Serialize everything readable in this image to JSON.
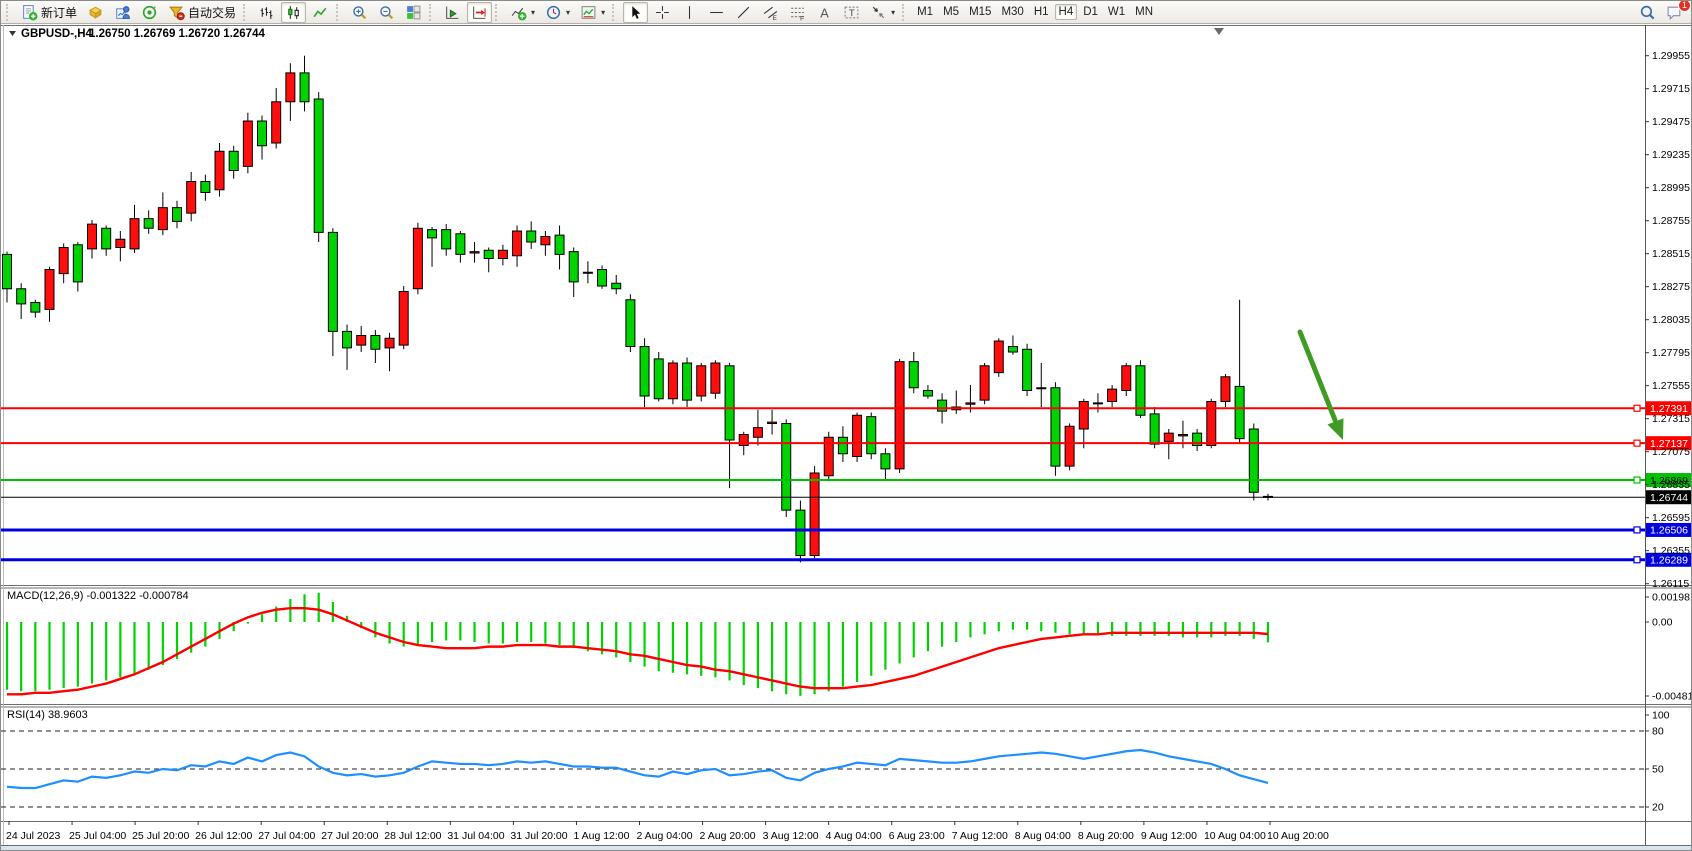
{
  "toolbar": {
    "groups": [
      {
        "name": "trade",
        "items": [
          {
            "name": "new-order-button",
            "icon": "new-order-icon",
            "label": "新订单"
          },
          {
            "name": "market-watch-button",
            "icon": "market-watch-icon"
          },
          {
            "name": "data-window-button",
            "icon": "data-window-icon"
          },
          {
            "name": "strategy-tester-button",
            "icon": "strategy-tester-icon"
          },
          {
            "name": "auto-trading-button",
            "icon": "autotrade-icon",
            "label": "自动交易"
          }
        ]
      },
      {
        "name": "chart-type",
        "items": [
          {
            "name": "bar-chart-button",
            "icon": "bar-chart-icon"
          },
          {
            "name": "candlestick-chart-button",
            "icon": "candlestick-icon",
            "active": true
          },
          {
            "name": "line-chart-button",
            "icon": "line-chart-icon"
          }
        ]
      },
      {
        "name": "zoom",
        "items": [
          {
            "name": "zoom-in-button",
            "icon": "zoom-in-icon"
          },
          {
            "name": "zoom-out-button",
            "icon": "zoom-out-icon"
          },
          {
            "name": "tile-windows-button",
            "icon": "tile-windows-icon"
          }
        ]
      },
      {
        "name": "scroll",
        "items": [
          {
            "name": "auto-scroll-button",
            "icon": "auto-scroll-icon"
          },
          {
            "name": "chart-shift-button",
            "icon": "chart-shift-icon",
            "active": true
          }
        ]
      },
      {
        "name": "chart-menus",
        "items": [
          {
            "name": "indicators-button",
            "icon": "indicators-icon",
            "caret": true
          },
          {
            "name": "periods-button",
            "icon": "periods-icon",
            "caret": true
          },
          {
            "name": "templates-button",
            "icon": "templates-icon",
            "caret": true
          }
        ]
      },
      {
        "name": "objects",
        "items": [
          {
            "name": "cursor-button",
            "icon": "cursor-icon",
            "active": true
          },
          {
            "name": "crosshair-button",
            "icon": "crosshair-icon"
          },
          {
            "name": "vertical-line-button",
            "icon": "vline-icon"
          },
          {
            "name": "horizontal-line-button",
            "icon": "hline-icon"
          },
          {
            "name": "trendline-button",
            "icon": "trendline-icon"
          },
          {
            "name": "equidistant-channel-button",
            "icon": "channel-icon"
          },
          {
            "name": "fibonacci-button",
            "icon": "fibo-icon"
          },
          {
            "name": "text-button",
            "icon": "text-icon"
          },
          {
            "name": "text-label-button",
            "icon": "text-label-icon"
          },
          {
            "name": "arrows-button",
            "icon": "arrows-icon",
            "caret": true
          }
        ]
      },
      {
        "name": "timeframes",
        "items": [
          {
            "name": "timeframe-m1-button",
            "label": "M1",
            "tf": true
          },
          {
            "name": "timeframe-m5-button",
            "label": "M5",
            "tf": true
          },
          {
            "name": "timeframe-m15-button",
            "label": "M15",
            "tf": true
          },
          {
            "name": "timeframe-m30-button",
            "label": "M30",
            "tf": true
          },
          {
            "name": "timeframe-h1-button",
            "label": "H1",
            "tf": true
          },
          {
            "name": "timeframe-h4-button",
            "label": "H4",
            "tf": true,
            "active": true
          },
          {
            "name": "timeframe-d1-button",
            "label": "D1",
            "tf": true
          },
          {
            "name": "timeframe-w1-button",
            "label": "W1",
            "tf": true
          },
          {
            "name": "timeframe-mn-button",
            "label": "MN",
            "tf": true
          }
        ]
      }
    ],
    "right": [
      {
        "name": "search-button",
        "icon": "search-icon"
      },
      {
        "name": "notifications-button",
        "icon": "chat-icon",
        "badge": "1"
      }
    ]
  },
  "chart_data": {
    "type": "candlestick",
    "symbol": "GBPUSD-",
    "timeframe": "H4",
    "title": "GBPUSD-,H4",
    "ohlc_readout": "1.26750 1.26769 1.26720 1.26744",
    "current": {
      "open": "1.26750",
      "high": "1.26769",
      "low": "1.26720",
      "close": "1.26744"
    },
    "up_color": "#ff0e0e",
    "down_color": "#00d300",
    "candles": [
      [
        1.2851,
        1.2853,
        1.2816,
        1.2826
      ],
      [
        1.2826,
        1.283,
        1.2804,
        1.2815
      ],
      [
        1.2816,
        1.2818,
        1.2805,
        1.2809
      ],
      [
        1.2811,
        1.2842,
        1.2802,
        1.284
      ],
      [
        1.2837,
        1.2859,
        1.283,
        1.2856
      ],
      [
        1.2858,
        1.286,
        1.2824,
        1.2831
      ],
      [
        1.2855,
        1.2876,
        1.2848,
        1.2873
      ],
      [
        1.287,
        1.2872,
        1.285,
        1.2855
      ],
      [
        1.2856,
        1.2868,
        1.2846,
        1.2862
      ],
      [
        1.2855,
        1.2887,
        1.2852,
        1.2877
      ],
      [
        1.2877,
        1.2883,
        1.2866,
        1.287
      ],
      [
        1.2869,
        1.2896,
        1.2865,
        1.2885
      ],
      [
        1.2885,
        1.289,
        1.287,
        1.2875
      ],
      [
        1.2881,
        1.2911,
        1.2875,
        1.2904
      ],
      [
        1.2904,
        1.2909,
        1.289,
        1.2896
      ],
      [
        1.2898,
        1.2932,
        1.2893,
        1.2926
      ],
      [
        1.2926,
        1.293,
        1.2906,
        1.2912
      ],
      [
        1.2915,
        1.2954,
        1.291,
        1.2948
      ],
      [
        1.2948,
        1.2952,
        1.292,
        1.293
      ],
      [
        1.2932,
        1.2972,
        1.2928,
        1.2962
      ],
      [
        1.2962,
        1.299,
        1.2948,
        1.2983
      ],
      [
        1.2983,
        1.29955,
        1.2955,
        1.2962
      ],
      [
        1.2964,
        1.2969,
        1.286,
        1.2867
      ],
      [
        1.2867,
        1.287,
        1.2777,
        1.2795
      ],
      [
        1.2795,
        1.28,
        1.2767,
        1.2783
      ],
      [
        1.2785,
        1.2799,
        1.278,
        1.2792
      ],
      [
        1.2792,
        1.2796,
        1.2772,
        1.2782
      ],
      [
        1.2783,
        1.2794,
        1.2766,
        1.279
      ],
      [
        1.2785,
        1.2828,
        1.2782,
        1.2824
      ],
      [
        1.2826,
        1.2874,
        1.2822,
        1.287
      ],
      [
        1.2869,
        1.2871,
        1.2842,
        1.2863
      ],
      [
        1.2869,
        1.2873,
        1.285,
        1.2855
      ],
      [
        1.2866,
        1.2868,
        1.2845,
        1.2851
      ],
      [
        1.2852,
        1.286,
        1.2845,
        1.2853
      ],
      [
        1.2854,
        1.2856,
        1.2838,
        1.2848
      ],
      [
        1.2848,
        1.2858,
        1.2843,
        1.2854
      ],
      [
        1.285,
        1.2872,
        1.2842,
        1.2868
      ],
      [
        1.2868,
        1.2875,
        1.2855,
        1.286
      ],
      [
        1.2858,
        1.2868,
        1.285,
        1.2864
      ],
      [
        1.2865,
        1.2872,
        1.284,
        1.2851
      ],
      [
        1.2853,
        1.2856,
        1.282,
        1.2831
      ],
      [
        1.2838,
        1.2846,
        1.283,
        1.2838
      ],
      [
        1.284,
        1.2843,
        1.2826,
        1.2828
      ],
      [
        1.283,
        1.2836,
        1.2822,
        1.2826
      ],
      [
        1.2818,
        1.2822,
        1.278,
        1.2784
      ],
      [
        1.2784,
        1.279,
        1.274,
        1.2748
      ],
      [
        1.2775,
        1.278,
        1.2744,
        1.2746
      ],
      [
        1.2746,
        1.2774,
        1.2742,
        1.2772
      ],
      [
        1.2772,
        1.2776,
        1.274,
        1.2745
      ],
      [
        1.2748,
        1.2772,
        1.2744,
        1.277
      ],
      [
        1.275,
        1.2774,
        1.2746,
        1.2772
      ],
      [
        1.277,
        1.2772,
        1.2681,
        1.2716
      ],
      [
        1.2712,
        1.2722,
        1.2705,
        1.272
      ],
      [
        1.2718,
        1.2738,
        1.2712,
        1.2725
      ],
      [
        1.2728,
        1.2738,
        1.272,
        1.2729
      ],
      [
        1.2728,
        1.2731,
        1.266,
        1.2665
      ],
      [
        1.2665,
        1.2672,
        1.2627,
        1.2632
      ],
      [
        1.2632,
        1.2697,
        1.263,
        1.2692
      ],
      [
        1.269,
        1.2722,
        1.2686,
        1.2718
      ],
      [
        1.2718,
        1.2726,
        1.27,
        1.2706
      ],
      [
        1.2704,
        1.2736,
        1.27,
        1.2734
      ],
      [
        1.2733,
        1.2736,
        1.2702,
        1.2706
      ],
      [
        1.2706,
        1.271,
        1.2687,
        1.2695
      ],
      [
        1.2695,
        1.2775,
        1.2692,
        1.2773
      ],
      [
        1.2773,
        1.278,
        1.275,
        1.2754
      ],
      [
        1.2752,
        1.2756,
        1.2746,
        1.2748
      ],
      [
        1.2745,
        1.275,
        1.2728,
        1.2737
      ],
      [
        1.274,
        1.2752,
        1.2735,
        1.2738
      ],
      [
        1.2742,
        1.2756,
        1.2736,
        1.2743
      ],
      [
        1.2745,
        1.2772,
        1.2742,
        1.277
      ],
      [
        1.2765,
        1.279,
        1.2762,
        1.2788
      ],
      [
        1.2784,
        1.2792,
        1.2778,
        1.278
      ],
      [
        1.2782,
        1.2786,
        1.2748,
        1.2752
      ],
      [
        1.2754,
        1.2772,
        1.274,
        1.2754
      ],
      [
        1.2754,
        1.2758,
        1.269,
        1.2697
      ],
      [
        1.2697,
        1.2728,
        1.2694,
        1.2726
      ],
      [
        1.2724,
        1.2746,
        1.271,
        1.2744
      ],
      [
        1.2743,
        1.275,
        1.2736,
        1.2743
      ],
      [
        1.2744,
        1.2756,
        1.274,
        1.2753
      ],
      [
        1.2752,
        1.2772,
        1.2748,
        1.277
      ],
      [
        1.277,
        1.2774,
        1.2732,
        1.2734
      ],
      [
        1.2735,
        1.274,
        1.271,
        1.2713
      ],
      [
        1.2715,
        1.2724,
        1.2702,
        1.2721
      ],
      [
        1.2719,
        1.273,
        1.271,
        1.272
      ],
      [
        1.2721,
        1.2724,
        1.2708,
        1.2712
      ],
      [
        1.2712,
        1.2746,
        1.271,
        1.2744
      ],
      [
        1.2744,
        1.2764,
        1.274,
        1.2762
      ],
      [
        1.2755,
        1.2818,
        1.2714,
        1.2717
      ],
      [
        1.2724,
        1.2728,
        1.2672,
        1.2678
      ],
      [
        1.2675,
        1.26769,
        1.2672,
        1.26744
      ]
    ],
    "price_axis_labels": [
      "1.29955",
      "1.29715",
      "1.29475",
      "1.29235",
      "1.28995",
      "1.28755",
      "1.28515",
      "1.28275",
      "1.28035",
      "1.27795",
      "1.27555",
      "1.27315",
      "1.27075",
      "1.26835",
      "1.26595",
      "1.26355",
      "1.26115"
    ],
    "time_labels": [
      "24 Jul 2023",
      "25 Jul 04:00",
      "25 Jul 20:00",
      "26 Jul 12:00",
      "27 Jul 04:00",
      "27 Jul 20:00",
      "28 Jul 12:00",
      "31 Jul 04:00",
      "31 Jul 20:00",
      "1 Aug 12:00",
      "2 Aug 04:00",
      "2 Aug 20:00",
      "3 Aug 12:00",
      "4 Aug 04:00",
      "6 Aug 23:00",
      "7 Aug 12:00",
      "8 Aug 04:00",
      "8 Aug 20:00",
      "9 Aug 12:00",
      "10 Aug 04:00",
      "10 Aug 20:00"
    ],
    "levels": [
      {
        "name": "resistance-line-1",
        "price": 1.27391,
        "label": "1.27391",
        "color": "#ff0000",
        "text": "#ffffff",
        "width": 2
      },
      {
        "name": "resistance-line-2",
        "price": 1.27137,
        "label": "1.27137",
        "color": "#ff0000",
        "text": "#ffffff",
        "width": 2
      },
      {
        "name": "support-line-green",
        "price": 1.26869,
        "label": "1.26869",
        "color": "#00c100",
        "text": "#000000",
        "width": 2
      },
      {
        "name": "current-price-line",
        "price": 1.26744,
        "label": "1.26744",
        "color": "#000000",
        "text": "#ffffff",
        "width": 1,
        "current": true
      },
      {
        "name": "support-line-blue-1",
        "price": 1.26506,
        "label": "1.26506",
        "color": "#0000e0",
        "text": "#ffffff",
        "width": 3
      },
      {
        "name": "support-line-blue-2",
        "price": 1.26289,
        "label": "1.26289",
        "color": "#0000e0",
        "text": "#ffffff",
        "width": 3
      }
    ],
    "arrow": {
      "name": "sell-arrow-annotation",
      "color": "#3f9b23"
    },
    "indicators": {
      "macd": {
        "label": "MACD(12,26,9) -0.001322 -0.000784",
        "params": "12,26,9",
        "main_value": -0.001322,
        "signal_value": -0.000784,
        "axis_labels": [
          "0.001981",
          "0.00",
          "-0.00481"
        ],
        "hist_color": "#00d300",
        "signal_color": "#ff0000",
        "histogram": [
          -0.0044,
          -0.0045,
          -0.0045,
          -0.0044,
          -0.0043,
          -0.0042,
          -0.004,
          -0.0038,
          -0.0036,
          -0.0034,
          -0.0031,
          -0.0028,
          -0.0024,
          -0.002,
          -0.0016,
          -0.0011,
          -0.0006,
          -0.0001,
          0.0005,
          0.001,
          0.0015,
          0.0018,
          0.0019,
          0.0013,
          0.0004,
          -0.0004,
          -0.001,
          -0.0014,
          -0.0016,
          -0.0015,
          -0.0013,
          -0.0012,
          -0.0012,
          -0.0013,
          -0.0014,
          -0.0014,
          -0.0013,
          -0.0013,
          -0.0014,
          -0.0015,
          -0.0017,
          -0.0019,
          -0.0021,
          -0.0023,
          -0.0026,
          -0.0029,
          -0.0032,
          -0.0033,
          -0.0034,
          -0.0035,
          -0.0036,
          -0.0038,
          -0.0041,
          -0.0043,
          -0.0045,
          -0.0047,
          -0.0048,
          -0.0047,
          -0.0045,
          -0.0042,
          -0.0039,
          -0.0035,
          -0.0031,
          -0.0027,
          -0.0023,
          -0.0019,
          -0.0016,
          -0.0013,
          -0.001,
          -0.0008,
          -0.0006,
          -0.0005,
          -0.0005,
          -0.0006,
          -0.0007,
          -0.0008,
          -0.0008,
          -0.0008,
          -0.0009,
          -0.0009,
          -0.0009,
          -0.0009,
          -0.0009,
          -0.001,
          -0.001,
          -0.001,
          -0.0009,
          -0.0009,
          -0.0011,
          -0.001322
        ],
        "signal": [
          -0.0047,
          -0.0047,
          -0.0046,
          -0.0046,
          -0.0045,
          -0.0044,
          -0.0042,
          -0.004,
          -0.0037,
          -0.0034,
          -0.003,
          -0.0026,
          -0.0021,
          -0.0016,
          -0.0011,
          -0.0006,
          -0.0001,
          0.0003,
          0.0006,
          0.0008,
          0.0009,
          0.0009,
          0.0008,
          0.0005,
          0.0001,
          -0.0003,
          -0.0007,
          -0.001,
          -0.0013,
          -0.0015,
          -0.0016,
          -0.0017,
          -0.0017,
          -0.0017,
          -0.0016,
          -0.0016,
          -0.0015,
          -0.0015,
          -0.0015,
          -0.0016,
          -0.0016,
          -0.0017,
          -0.0018,
          -0.0019,
          -0.0021,
          -0.0022,
          -0.0024,
          -0.0026,
          -0.0028,
          -0.0029,
          -0.0031,
          -0.0032,
          -0.0034,
          -0.0036,
          -0.0038,
          -0.004,
          -0.0042,
          -0.0043,
          -0.0043,
          -0.0043,
          -0.0042,
          -0.0041,
          -0.0039,
          -0.0037,
          -0.0035,
          -0.0032,
          -0.0029,
          -0.0026,
          -0.0023,
          -0.002,
          -0.0017,
          -0.0015,
          -0.0013,
          -0.0011,
          -0.001,
          -0.0009,
          -0.0008,
          -0.0008,
          -0.0007,
          -0.0007,
          -0.0007,
          -0.0007,
          -0.0007,
          -0.0007,
          -0.0007,
          -0.0007,
          -0.0007,
          -0.0007,
          -0.0007,
          -0.00078
        ]
      },
      "rsi": {
        "label": "RSI(14) 38.9603",
        "period": 14,
        "value": 38.9603,
        "levels": [
          "100",
          "80",
          "50",
          "20"
        ],
        "line_color": "#1e8fff",
        "values": [
          36,
          35,
          35,
          38,
          41,
          40,
          44,
          43,
          45,
          48,
          47,
          50,
          49,
          53,
          52,
          56,
          54,
          59,
          56,
          61,
          63,
          60,
          52,
          47,
          45,
          46,
          44,
          45,
          47,
          52,
          56,
          55,
          54,
          54,
          53,
          54,
          56,
          55,
          56,
          54,
          52,
          52,
          51,
          51,
          48,
          45,
          44,
          48,
          46,
          49,
          50,
          45,
          46,
          48,
          49,
          43,
          41,
          47,
          50,
          52,
          55,
          54,
          53,
          58,
          57,
          56,
          55,
          55,
          56,
          58,
          60,
          61,
          62,
          63,
          62,
          60,
          58,
          60,
          62,
          64,
          65,
          63,
          60,
          58,
          56,
          54,
          50,
          45,
          42,
          38.96
        ]
      }
    }
  }
}
